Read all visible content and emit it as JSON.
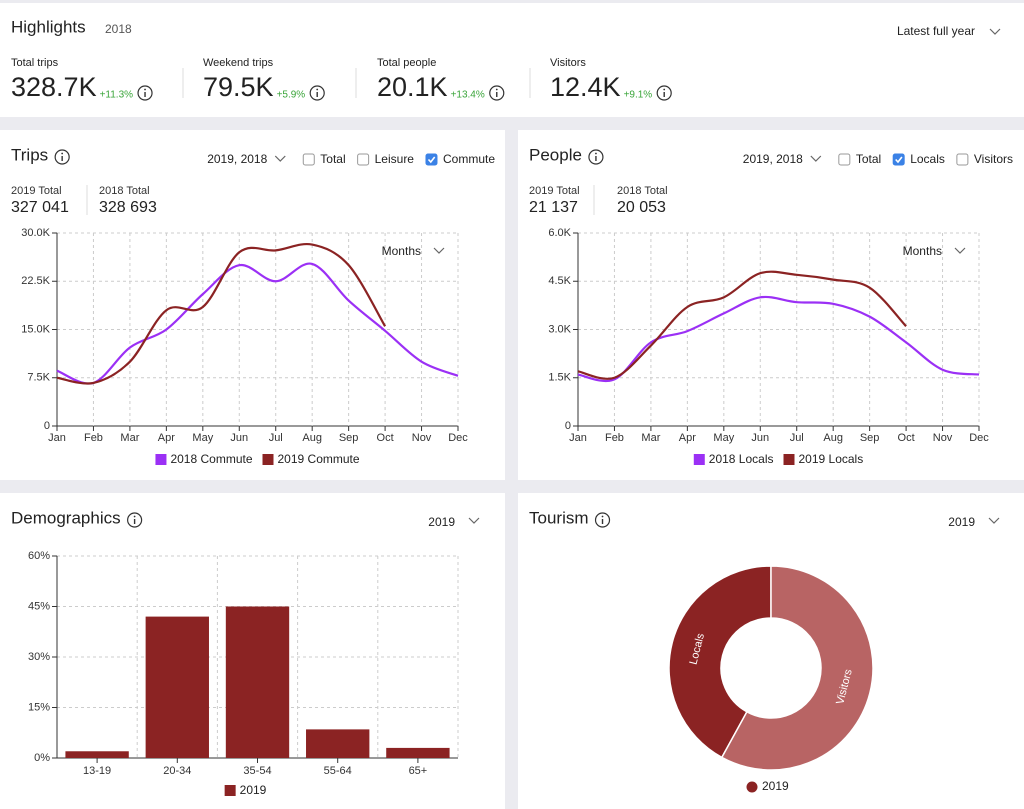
{
  "highlights": {
    "title": "Highlights",
    "year": "2018",
    "period": "Latest full year",
    "metrics": [
      {
        "label": "Total trips",
        "value": "328.7K",
        "change": "+11.3%"
      },
      {
        "label": "Weekend trips",
        "value": "79.5K",
        "change": "+5.9%"
      },
      {
        "label": "Total people",
        "value": "20.1K",
        "change": "+13.4%"
      },
      {
        "label": "Visitors",
        "value": "12.4K",
        "change": "+9.1%"
      }
    ]
  },
  "chart_data": [
    {
      "type": "line",
      "title": "Trips",
      "period": "2019, 2018",
      "options": [
        {
          "label": "Total",
          "checked": false
        },
        {
          "label": "Leisure",
          "checked": false
        },
        {
          "label": "Commute",
          "checked": true
        }
      ],
      "totals": [
        {
          "label": "2019 Total",
          "value": "327 041"
        },
        {
          "label": "2018 Total",
          "value": "328 693"
        }
      ],
      "granularity": "Months",
      "categories": [
        "Jan",
        "Feb",
        "Mar",
        "Apr",
        "May",
        "Jun",
        "Jul",
        "Aug",
        "Sep",
        "Oct",
        "Nov",
        "Dec"
      ],
      "series": [
        {
          "name": "2018 Commute",
          "color": "#9b30f5",
          "values": [
            8600,
            6700,
            12200,
            15000,
            20500,
            25000,
            22500,
            25200,
            19500,
            14800,
            10000,
            7800
          ]
        },
        {
          "name": "2019 Commute",
          "color": "#8b2323",
          "values": [
            7500,
            6700,
            10000,
            18000,
            18500,
            27000,
            27300,
            28200,
            25000,
            15500,
            null,
            null
          ]
        }
      ],
      "ylim": [
        0,
        30000
      ],
      "yticks": [
        0,
        {
          "value": 7500,
          "label": "7.5K"
        },
        {
          "value": 15000,
          "label": "15.0K"
        },
        {
          "value": 22500,
          "label": "22.5K"
        },
        {
          "value": 30000,
          "label": "30.0K"
        }
      ],
      "grid": true
    },
    {
      "type": "line",
      "title": "People",
      "period": "2019, 2018",
      "options": [
        {
          "label": "Total",
          "checked": false
        },
        {
          "label": "Locals",
          "checked": true
        },
        {
          "label": "Visitors",
          "checked": false
        }
      ],
      "totals": [
        {
          "label": "2019 Total",
          "value": "21 137"
        },
        {
          "label": "2018 Total",
          "value": "20 053"
        }
      ],
      "granularity": "Months",
      "categories": [
        "Jan",
        "Feb",
        "Mar",
        "Apr",
        "May",
        "Jun",
        "Jul",
        "Aug",
        "Sep",
        "Oct",
        "Nov",
        "Dec"
      ],
      "series": [
        {
          "name": "2018 Locals",
          "color": "#9b30f5",
          "values": [
            1600,
            1450,
            2600,
            2950,
            3500,
            4000,
            3850,
            3800,
            3400,
            2600,
            1750,
            1600
          ]
        },
        {
          "name": "2019 Locals",
          "color": "#8b2323",
          "values": [
            1700,
            1500,
            2500,
            3700,
            4000,
            4750,
            4700,
            4550,
            4300,
            3100,
            null,
            null
          ]
        }
      ],
      "ylim": [
        0,
        6000
      ],
      "yticks": [
        0,
        {
          "value": 1500,
          "label": "1.5K"
        },
        {
          "value": 3000,
          "label": "3.0K"
        },
        {
          "value": 4500,
          "label": "4.5K"
        },
        {
          "value": 6000,
          "label": "6.0K"
        }
      ],
      "grid": true
    },
    {
      "type": "bar",
      "title": "Demographics",
      "period": "2019",
      "categories": [
        "13-19",
        "20-34",
        "35-54",
        "55-64",
        "65+"
      ],
      "series": [
        {
          "name": "2019",
          "color": "#8b2323",
          "values": [
            2,
            42,
            45,
            8.5,
            3
          ]
        }
      ],
      "ylim": [
        0,
        60
      ],
      "yticks": [
        {
          "value": 0,
          "label": "0%"
        },
        {
          "value": 15,
          "label": "15%"
        },
        {
          "value": 30,
          "label": "30%"
        },
        {
          "value": 45,
          "label": "45%"
        },
        {
          "value": 60,
          "label": "60%"
        }
      ],
      "grid": true
    },
    {
      "type": "donut",
      "title": "Tourism",
      "period": "2019",
      "categories": [
        "Locals",
        "Visitors"
      ],
      "series": [
        {
          "name": "2019",
          "color": "#8b2323",
          "colors": [
            "#8b2323",
            "#b86464"
          ],
          "values": [
            42,
            58
          ]
        }
      ]
    }
  ]
}
